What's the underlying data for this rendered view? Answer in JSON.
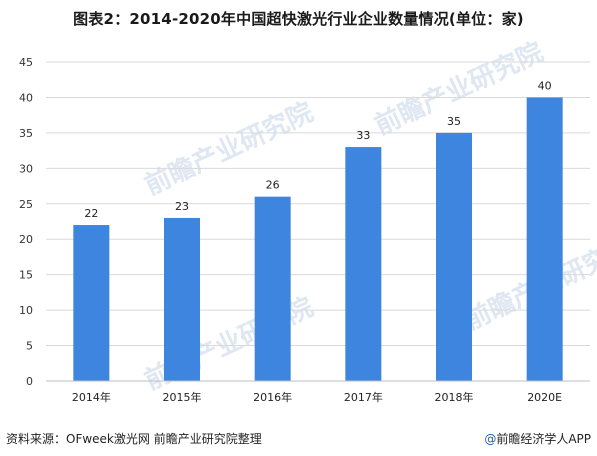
{
  "title": "图表2：2014-2020年中国超快激光行业企业数量情况(单位：家)",
  "footer": {
    "source": "资料来源：OFweek激光网 前瞻产业研究院整理",
    "credit_mark": "@",
    "credit": "前瞻经济学人APP"
  },
  "watermark": {
    "text": "前瞻产业研究院"
  },
  "colors": {
    "bar": "#3d85df",
    "grid": "#d9d9d9",
    "axis": "#bfbfbf"
  },
  "chart_data": {
    "type": "bar",
    "categories": [
      "2014年",
      "2015年",
      "2016年",
      "2017年",
      "2018年",
      "2020E"
    ],
    "values": [
      22,
      23,
      26,
      33,
      35,
      40
    ],
    "data_labels": [
      "22",
      "23",
      "26",
      "33",
      "35",
      "40"
    ],
    "title": "图表2：2014-2020年中国超快激光行业企业数量情况(单位：家)",
    "xlabel": "",
    "ylabel": "",
    "ylim": [
      0,
      45
    ],
    "yticks": [
      0,
      5,
      10,
      15,
      20,
      25,
      30,
      35,
      40,
      45
    ],
    "grid": true,
    "legend": "none"
  }
}
